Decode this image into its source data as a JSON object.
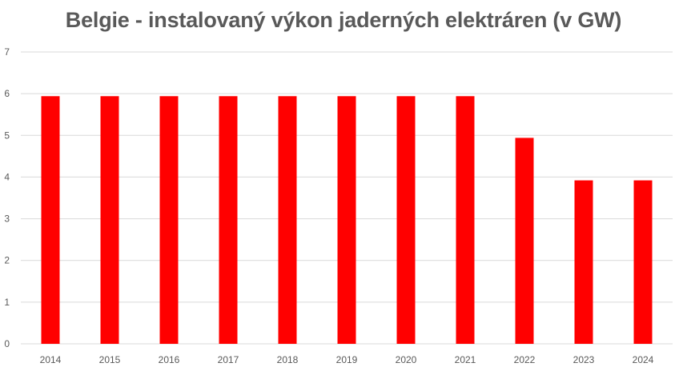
{
  "chart_data": {
    "type": "bar",
    "title": "Belgie - instalovaný výkon jaderných elektráren (v GW)",
    "categories": [
      "2014",
      "2015",
      "2016",
      "2017",
      "2018",
      "2019",
      "2020",
      "2021",
      "2022",
      "2023",
      "2024"
    ],
    "values": [
      5.94,
      5.94,
      5.94,
      5.94,
      5.94,
      5.94,
      5.94,
      5.94,
      4.94,
      3.92,
      3.92
    ],
    "xlabel": "",
    "ylabel": "",
    "ylim": [
      0,
      7
    ],
    "yticks": [
      "0",
      "1",
      "2",
      "3",
      "4",
      "5",
      "6",
      "7"
    ],
    "grid": true,
    "legend": "none",
    "colors": {
      "bar": "#FF0000",
      "grid": "#D9D9D9",
      "text": "#595959"
    }
  }
}
